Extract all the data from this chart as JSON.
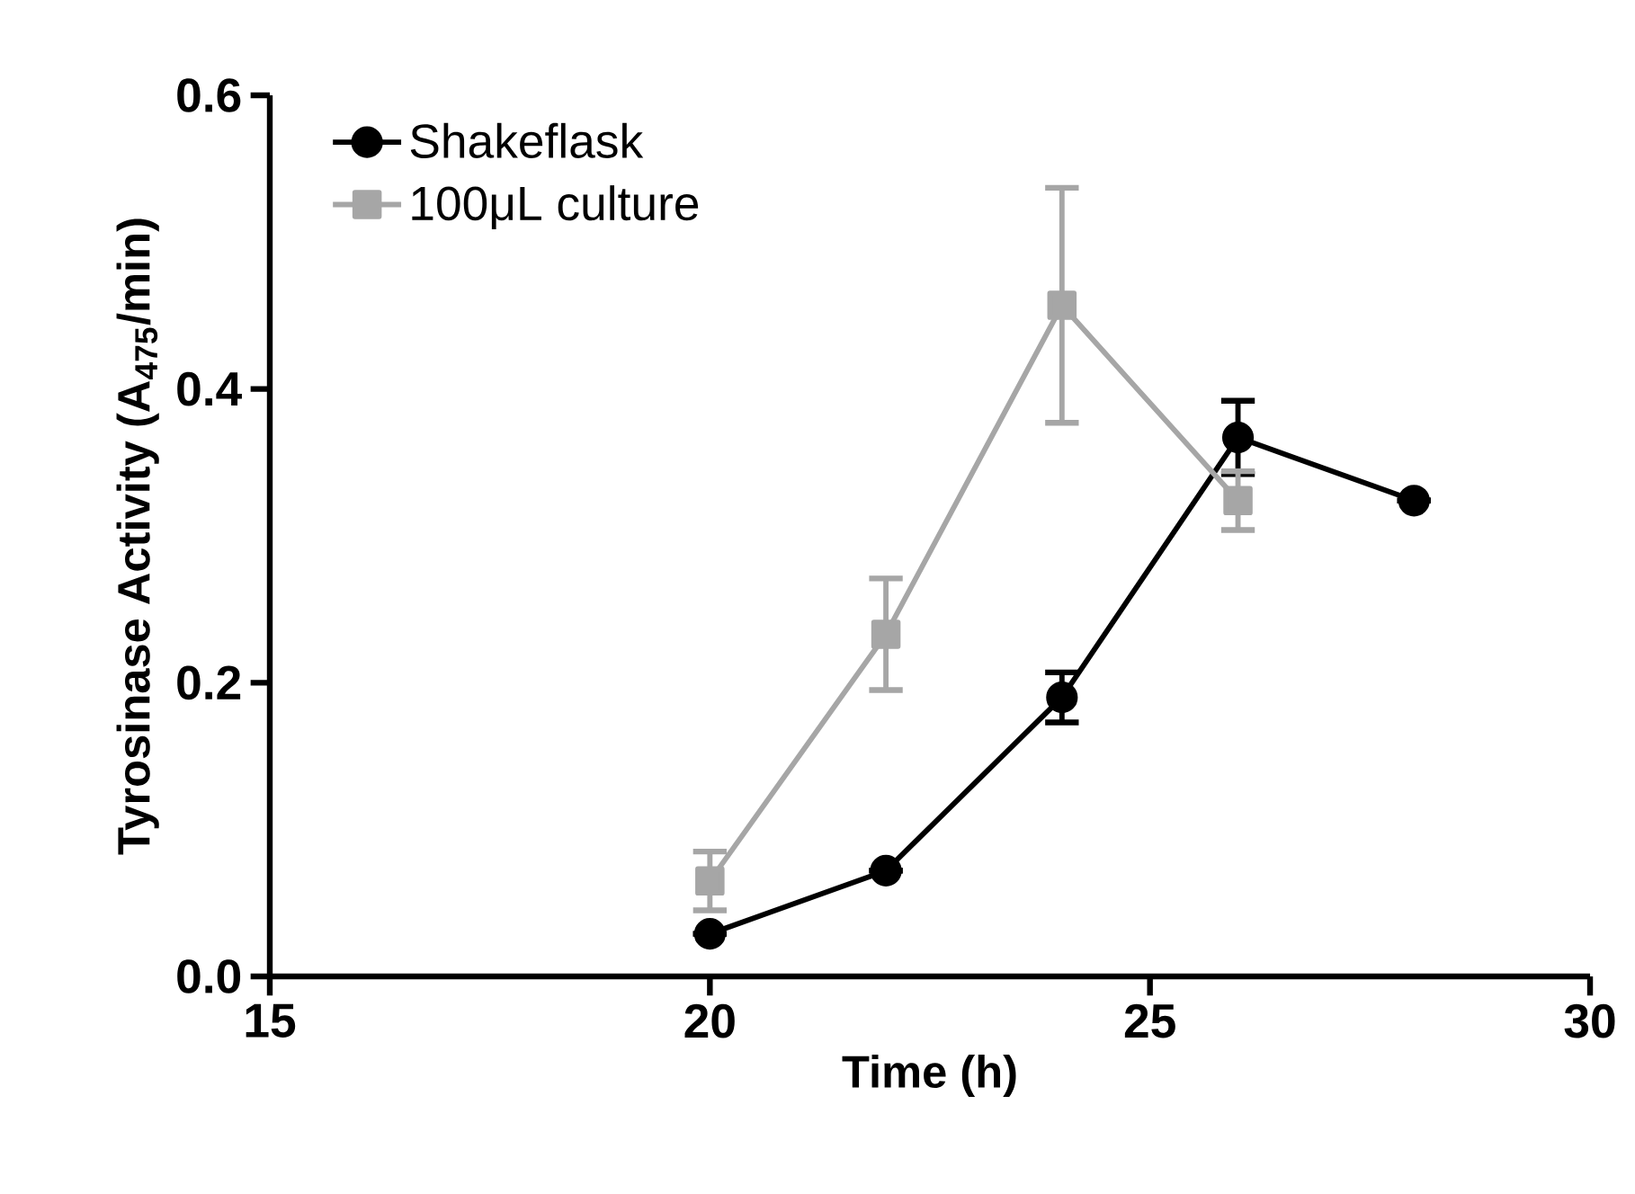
{
  "chart_data": {
    "type": "line",
    "xlabel": "Time (h)",
    "ylabel": "Tyrosinase Activity (A$_{475}$/min)",
    "xlim": [
      15,
      30
    ],
    "xticks": [
      15,
      20,
      25,
      30
    ],
    "ylim": [
      0,
      0.6
    ],
    "yticks": [
      {
        "value": 0,
        "label": "0.0"
      },
      0.2,
      0.4,
      0.6
    ],
    "legend": "top left",
    "series": [
      {
        "name": "Shakeflask",
        "color": "#000000",
        "marker": "circle",
        "x": [
          20,
          22,
          24,
          26,
          28
        ],
        "values": [
          0.029,
          0.072,
          0.19,
          0.367,
          0.324
        ],
        "errors": [
          null,
          null,
          0.017,
          0.025,
          null
        ]
      },
      {
        "name": "100μL culture",
        "color": "#a6a6a6",
        "marker": "square",
        "x": [
          20,
          22,
          24,
          26
        ],
        "values": [
          0.065,
          0.233,
          0.457,
          0.324
        ],
        "errors": [
          0.02,
          0.038,
          0.08,
          0.02
        ]
      }
    ]
  }
}
